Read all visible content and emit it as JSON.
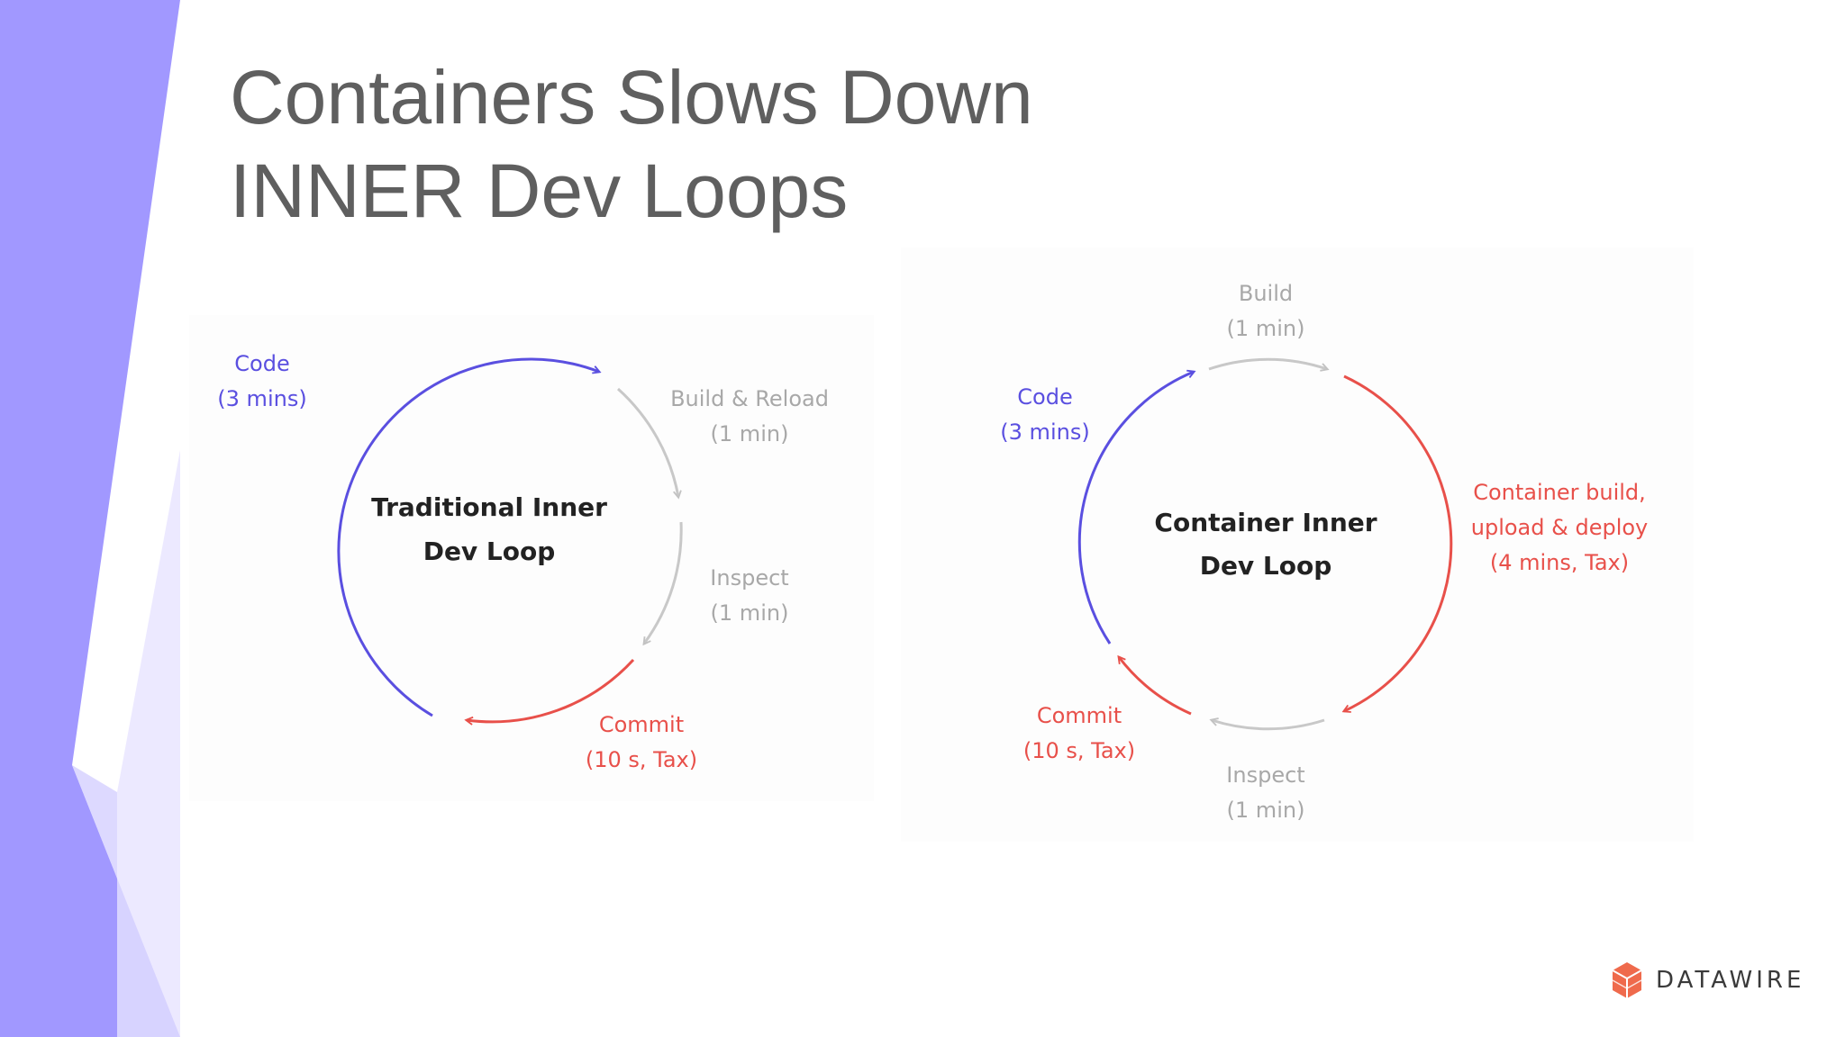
{
  "title": {
    "line1": "Containers Slows Down",
    "line2": "INNER Dev Loops"
  },
  "colors": {
    "sidebar": "#a198ff",
    "purple": "#5a4fe0",
    "gray": "#b8b8b8",
    "red": "#e8504a",
    "title": "#5f5f5f"
  },
  "traditional": {
    "center_line1": "Traditional Inner",
    "center_line2": "Dev Loop",
    "code": {
      "line1": "Code",
      "line2": "(3 mins)"
    },
    "build": {
      "line1": "Build & Reload",
      "line2": "(1 min)"
    },
    "inspect": {
      "line1": "Inspect",
      "line2": "(1 min)"
    },
    "commit": {
      "line1": "Commit",
      "line2": "(10 s, Tax)"
    }
  },
  "container": {
    "center_line1": "Container Inner",
    "center_line2": "Dev Loop",
    "build": {
      "line1": "Build",
      "line2": "(1 min)"
    },
    "code": {
      "line1": "Code",
      "line2": "(3 mins)"
    },
    "deploy": {
      "line1": "Container build,",
      "line2": "upload & deploy",
      "line3": "(4 mins, Tax)"
    },
    "commit": {
      "line1": "Commit",
      "line2": "(10 s, Tax)"
    },
    "inspect": {
      "line1": "Inspect",
      "line2": "(1 min)"
    }
  },
  "logo": {
    "text": "DATAWIRE",
    "icon": "datawire-logo-icon"
  }
}
